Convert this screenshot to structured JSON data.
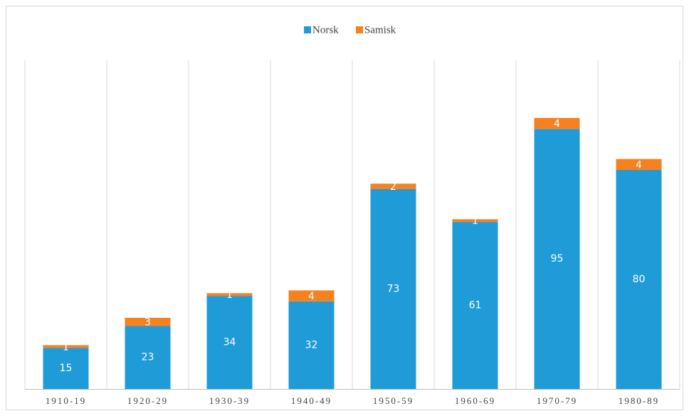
{
  "chart_data": {
    "type": "stacked_bar",
    "categories": [
      "1910-19",
      "1920-29",
      "1930-39",
      "1940-49",
      "1950-59",
      "1960-69",
      "1970-79",
      "1980-89"
    ],
    "series": [
      {
        "name": "Norsk",
        "color": "#1f9bd7",
        "values": [
          15,
          23,
          34,
          32,
          73,
          61,
          95,
          80
        ]
      },
      {
        "name": "Samisk",
        "color": "#f7801f",
        "values": [
          1,
          3,
          1,
          4,
          2,
          1,
          4,
          4
        ]
      }
    ],
    "ylim": [
      0,
      120
    ],
    "legend": "top"
  }
}
